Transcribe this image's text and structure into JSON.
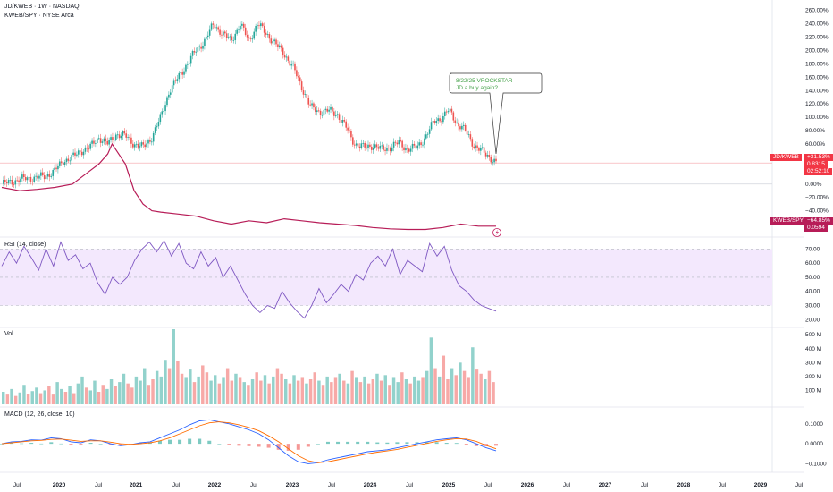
{
  "header": {
    "symbol": "JD/KWEB · 1W · NASDAQ",
    "compare": "KWEB/SPY · NYSE Arca"
  },
  "annotation": {
    "line1": "8/22/25 VROCKSTAR",
    "line2": "JD a buy again?"
  },
  "price_tags": {
    "jdkweb_name": "JD/KWEB",
    "jdkweb_pct": "+31.53%",
    "jdkweb_val": "0.8315",
    "jdkweb_cd": "02:52:10",
    "kwebspy_name": "KWEB/SPY",
    "kwebspy_pct": "−64.85%",
    "kwebspy_val": "0.0594"
  },
  "panes": {
    "rsi_title": "RSI (14, close)",
    "vol_title": "Vol",
    "macd_title": "MACD (12, 26, close, 10)"
  },
  "colors": {
    "up": "#26a69a",
    "down": "#ef5350",
    "kweb_line": "#b71c57",
    "rsi_line": "#7e57c2",
    "rsi_band": "#f3e8fd",
    "macd_line": "#2962ff",
    "signal_line": "#ff6d00",
    "annotation_text": "#43a047"
  },
  "chart_data": [
    {
      "type": "line",
      "pane": "price",
      "y_unit": "%",
      "y_ticks": [
        "260.00%",
        "240.00%",
        "220.00%",
        "200.00%",
        "180.00%",
        "160.00%",
        "140.00%",
        "120.00%",
        "100.00%",
        "80.00%",
        "60.00%",
        "40.00%",
        "20.00%",
        "0.00%",
        "−20.00%",
        "−40.00%",
        "−60.00%"
      ],
      "ylim": [
        -70,
        265
      ],
      "x_ticks": [
        "Jul",
        "2020",
        "Jul",
        "2021",
        "Jul",
        "2022",
        "Jul",
        "2023",
        "Jul",
        "2024",
        "Jul",
        "2025",
        "Jul",
        "2026",
        "Jul",
        "2027",
        "Jul",
        "2028",
        "Jul",
        "2029",
        "Jul"
      ],
      "series": [
        {
          "name": "JD/KWEB",
          "style": "candles",
          "points": [
            [
              0,
              0
            ],
            [
              3,
              5
            ],
            [
              5,
              8
            ],
            [
              8,
              10
            ],
            [
              10,
              12
            ],
            [
              12,
              20
            ],
            [
              14,
              35
            ],
            [
              16,
              40
            ],
            [
              18,
              50
            ],
            [
              20,
              55
            ],
            [
              22,
              70
            ],
            [
              24,
              60
            ],
            [
              26,
              75
            ],
            [
              28,
              72
            ],
            [
              30,
              60
            ],
            [
              32,
              55
            ],
            [
              34,
              70
            ],
            [
              36,
              100
            ],
            [
              38,
              140
            ],
            [
              40,
              160
            ],
            [
              42,
              180
            ],
            [
              44,
              200
            ],
            [
              46,
              215
            ],
            [
              48,
              240
            ],
            [
              50,
              225
            ],
            [
              52,
              215
            ],
            [
              54,
              240
            ],
            [
              56,
              215
            ],
            [
              58,
              240
            ],
            [
              60,
              225
            ],
            [
              62,
              210
            ],
            [
              64,
              195
            ],
            [
              66,
              175
            ],
            [
              68,
              145
            ],
            [
              70,
              115
            ],
            [
              72,
              108
            ],
            [
              74,
              110
            ],
            [
              76,
              105
            ],
            [
              78,
              85
            ],
            [
              80,
              60
            ],
            [
              82,
              55
            ],
            [
              84,
              58
            ],
            [
              86,
              52
            ],
            [
              88,
              55
            ],
            [
              90,
              62
            ],
            [
              92,
              52
            ],
            [
              94,
              55
            ],
            [
              96,
              70
            ],
            [
              98,
              95
            ],
            [
              100,
              100
            ],
            [
              101,
              110
            ],
            [
              102,
              105
            ],
            [
              103,
              92
            ],
            [
              105,
              80
            ],
            [
              107,
              58
            ],
            [
              109,
              48
            ],
            [
              111,
              38
            ],
            [
              112,
              32
            ]
          ]
        },
        {
          "name": "KWEB/SPY",
          "style": "line",
          "points": [
            [
              0,
              -5
            ],
            [
              4,
              -10
            ],
            [
              8,
              -8
            ],
            [
              12,
              -5
            ],
            [
              16,
              0
            ],
            [
              18,
              10
            ],
            [
              20,
              20
            ],
            [
              22,
              30
            ],
            [
              24,
              45
            ],
            [
              25,
              60
            ],
            [
              26,
              50
            ],
            [
              28,
              30
            ],
            [
              30,
              -10
            ],
            [
              32,
              -30
            ],
            [
              34,
              -40
            ],
            [
              36,
              -42
            ],
            [
              40,
              -45
            ],
            [
              44,
              -48
            ],
            [
              48,
              -55
            ],
            [
              52,
              -60
            ],
            [
              56,
              -55
            ],
            [
              60,
              -58
            ],
            [
              64,
              -52
            ],
            [
              68,
              -55
            ],
            [
              72,
              -58
            ],
            [
              76,
              -60
            ],
            [
              80,
              -62
            ],
            [
              84,
              -65
            ],
            [
              88,
              -67
            ],
            [
              92,
              -68
            ],
            [
              96,
              -68
            ],
            [
              100,
              -65
            ],
            [
              104,
              -60
            ],
            [
              108,
              -63
            ],
            [
              112,
              -63
            ]
          ]
        }
      ]
    },
    {
      "type": "line",
      "pane": "rsi",
      "title": "RSI (14, close)",
      "y_ticks": [
        "70.00",
        "60.00",
        "50.00",
        "40.00",
        "30.00",
        "20.00"
      ],
      "ylim": [
        17,
        76
      ],
      "band": [
        30,
        70
      ],
      "points": [
        [
          0,
          58
        ],
        [
          2,
          68
        ],
        [
          4,
          60
        ],
        [
          6,
          72
        ],
        [
          8,
          64
        ],
        [
          10,
          55
        ],
        [
          12,
          70
        ],
        [
          14,
          58
        ],
        [
          16,
          75
        ],
        [
          18,
          62
        ],
        [
          20,
          66
        ],
        [
          22,
          56
        ],
        [
          24,
          60
        ],
        [
          26,
          46
        ],
        [
          28,
          38
        ],
        [
          30,
          50
        ],
        [
          32,
          45
        ],
        [
          34,
          50
        ],
        [
          36,
          62
        ],
        [
          38,
          70
        ],
        [
          40,
          75
        ],
        [
          42,
          68
        ],
        [
          44,
          76
        ],
        [
          46,
          65
        ],
        [
          48,
          74
        ],
        [
          50,
          60
        ],
        [
          52,
          56
        ],
        [
          54,
          68
        ],
        [
          56,
          58
        ],
        [
          58,
          64
        ],
        [
          60,
          50
        ],
        [
          62,
          58
        ],
        [
          64,
          48
        ],
        [
          66,
          38
        ],
        [
          68,
          30
        ],
        [
          70,
          25
        ],
        [
          72,
          30
        ],
        [
          74,
          28
        ],
        [
          76,
          40
        ],
        [
          78,
          32
        ],
        [
          80,
          26
        ],
        [
          82,
          21
        ],
        [
          84,
          30
        ],
        [
          86,
          42
        ],
        [
          88,
          32
        ],
        [
          90,
          38
        ],
        [
          92,
          45
        ],
        [
          94,
          40
        ],
        [
          96,
          52
        ],
        [
          98,
          48
        ],
        [
          100,
          60
        ],
        [
          102,
          65
        ],
        [
          104,
          58
        ],
        [
          106,
          70
        ],
        [
          108,
          52
        ],
        [
          110,
          62
        ],
        [
          112,
          58
        ],
        [
          114,
          54
        ],
        [
          116,
          74
        ],
        [
          118,
          65
        ],
        [
          120,
          72
        ],
        [
          122,
          55
        ],
        [
          124,
          44
        ],
        [
          126,
          40
        ],
        [
          128,
          34
        ],
        [
          130,
          30
        ],
        [
          132,
          28
        ],
        [
          134,
          26
        ]
      ]
    },
    {
      "type": "bar",
      "pane": "volume",
      "title": "Vol",
      "y_unit": "M",
      "y_ticks": [
        "500 M",
        "400 M",
        "300 M",
        "200 M",
        "100 M"
      ],
      "ylim": [
        0,
        540
      ],
      "values": [
        90,
        70,
        110,
        60,
        85,
        140,
        75,
        95,
        120,
        80,
        100,
        130,
        70,
        160,
        110,
        90,
        135,
        80,
        150,
        200,
        120,
        100,
        170,
        90,
        140,
        110,
        180,
        130,
        160,
        220,
        150,
        120,
        200,
        170,
        260,
        140,
        180,
        240,
        200,
        320,
        260,
        540,
        310,
        220,
        190,
        250,
        160,
        200,
        280,
        230,
        170,
        210,
        150,
        190,
        260,
        170,
        220,
        190,
        160,
        140,
        180,
        230,
        170,
        210,
        150,
        200,
        260,
        220,
        180,
        150,
        210,
        170,
        190,
        150,
        180,
        230,
        170,
        140,
        200,
        160,
        190,
        220,
        170,
        150,
        240,
        190,
        160,
        200,
        150,
        180,
        220,
        170,
        210,
        140,
        190,
        160,
        230,
        180,
        150,
        200,
        170,
        190,
        240,
        480,
        260,
        200,
        350,
        180,
        260,
        210,
        300,
        240,
        190,
        410,
        250,
        220,
        180,
        240,
        160
      ],
      "up_flags": [
        1,
        0,
        1,
        0,
        1,
        1,
        0,
        1,
        1,
        0,
        1,
        0,
        0,
        1,
        1,
        0,
        1,
        0,
        1,
        1,
        0,
        1,
        1,
        0,
        0,
        1,
        1,
        0,
        1,
        1,
        0,
        0,
        1,
        1,
        1,
        0,
        0,
        1,
        1,
        1,
        0,
        1,
        0,
        0,
        1,
        1,
        0,
        1,
        0,
        0,
        1,
        1,
        0,
        1,
        0,
        0,
        1,
        0,
        1,
        0,
        1,
        0,
        0,
        1,
        0,
        1,
        0,
        0,
        1,
        0,
        1,
        0,
        0,
        1,
        0,
        0,
        1,
        0,
        1,
        0,
        0,
        1,
        0,
        1,
        0,
        1,
        0,
        1,
        0,
        0,
        1,
        0,
        1,
        0,
        1,
        1,
        0,
        1,
        0,
        1,
        1,
        0,
        1,
        1,
        0,
        1,
        0,
        0,
        1,
        0,
        1,
        0,
        0,
        1,
        0,
        0,
        1,
        0,
        0
      ]
    },
    {
      "type": "line",
      "pane": "macd",
      "title": "MACD (12, 26, close, 10)",
      "y_ticks": [
        "0.1000",
        "0.0000",
        "−0.1000"
      ],
      "ylim": [
        -0.125,
        0.135
      ],
      "series": [
        {
          "name": "MACD",
          "values": [
            0.0,
            0.01,
            0.012,
            0.02,
            0.018,
            0.03,
            0.025,
            0.01,
            0.005,
            0.02,
            0.015,
            0.0,
            -0.01,
            -0.005,
            0.005,
            0.01,
            0.03,
            0.05,
            0.07,
            0.095,
            0.115,
            0.12,
            0.11,
            0.1,
            0.085,
            0.07,
            0.05,
            0.02,
            -0.02,
            -0.06,
            -0.09,
            -0.1,
            -0.095,
            -0.08,
            -0.07,
            -0.06,
            -0.05,
            -0.04,
            -0.035,
            -0.03,
            -0.02,
            -0.01,
            0.0,
            0.01,
            0.02,
            0.025,
            0.03,
            0.02,
            0.0,
            -0.02,
            -0.035
          ]
        },
        {
          "name": "Signal",
          "values": [
            0.0,
            0.005,
            0.01,
            0.015,
            0.017,
            0.022,
            0.024,
            0.018,
            0.012,
            0.015,
            0.015,
            0.008,
            0.0,
            -0.003,
            0.0,
            0.005,
            0.015,
            0.03,
            0.05,
            0.07,
            0.09,
            0.105,
            0.11,
            0.105,
            0.095,
            0.082,
            0.065,
            0.04,
            0.01,
            -0.025,
            -0.06,
            -0.085,
            -0.095,
            -0.09,
            -0.08,
            -0.07,
            -0.06,
            -0.05,
            -0.042,
            -0.036,
            -0.028,
            -0.018,
            -0.008,
            0.002,
            0.012,
            0.02,
            0.026,
            0.024,
            0.012,
            -0.008,
            -0.025
          ]
        },
        {
          "name": "Histogram",
          "values": [
            0.0,
            0.005,
            0.002,
            0.005,
            0.001,
            0.008,
            0.001,
            -0.008,
            -0.007,
            0.005,
            0.0,
            -0.008,
            -0.01,
            -0.002,
            0.005,
            0.005,
            0.015,
            0.02,
            0.02,
            0.025,
            0.025,
            0.015,
            0.0,
            -0.005,
            -0.01,
            -0.012,
            -0.015,
            -0.02,
            -0.03,
            -0.035,
            -0.03,
            -0.015,
            0.0,
            0.01,
            0.01,
            0.01,
            0.01,
            0.01,
            0.007,
            0.006,
            0.008,
            0.008,
            0.008,
            0.008,
            0.008,
            0.005,
            0.004,
            -0.004,
            -0.012,
            -0.012,
            -0.01
          ]
        }
      ]
    }
  ]
}
